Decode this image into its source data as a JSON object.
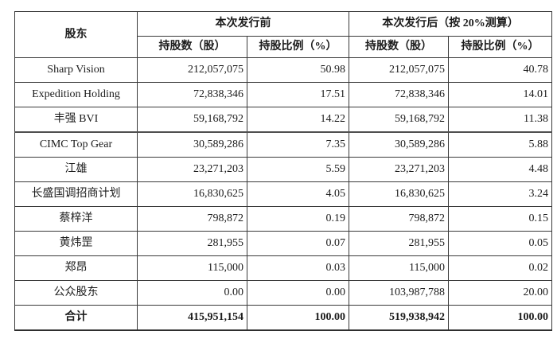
{
  "table": {
    "header": {
      "shareholder": "股东",
      "before_group": "本次发行前",
      "after_group": "本次发行后（按 20%测算）",
      "shares_label": "持股数（股）",
      "ratio_label": "持股比例（%）"
    },
    "rows": [
      {
        "name": "Sharp Vision",
        "before_shares": "212,057,075",
        "before_ratio": "50.98",
        "after_shares": "212,057,075",
        "after_ratio": "40.78",
        "total": false
      },
      {
        "name": "Expedition Holding",
        "before_shares": "72,838,346",
        "before_ratio": "17.51",
        "after_shares": "72,838,346",
        "after_ratio": "14.01",
        "total": false
      },
      {
        "name": "丰强 BVI",
        "before_shares": "59,168,792",
        "before_ratio": "14.22",
        "after_shares": "59,168,792",
        "after_ratio": "11.38",
        "total": false
      },
      {
        "name": "CIMC Top Gear",
        "before_shares": "30,589,286",
        "before_ratio": "7.35",
        "after_shares": "30,589,286",
        "after_ratio": "5.88",
        "total": false
      },
      {
        "name": "江雄",
        "before_shares": "23,271,203",
        "before_ratio": "5.59",
        "after_shares": "23,271,203",
        "after_ratio": "4.48",
        "total": false
      },
      {
        "name": "长盛国调招商计划",
        "before_shares": "16,830,625",
        "before_ratio": "4.05",
        "after_shares": "16,830,625",
        "after_ratio": "3.24",
        "total": false
      },
      {
        "name": "蔡梓洋",
        "before_shares": "798,872",
        "before_ratio": "0.19",
        "after_shares": "798,872",
        "after_ratio": "0.15",
        "total": false
      },
      {
        "name": "黄炜罡",
        "before_shares": "281,955",
        "before_ratio": "0.07",
        "after_shares": "281,955",
        "after_ratio": "0.05",
        "total": false
      },
      {
        "name": "郑昂",
        "before_shares": "115,000",
        "before_ratio": "0.03",
        "after_shares": "115,000",
        "after_ratio": "0.02",
        "total": false
      },
      {
        "name": "公众股东",
        "before_shares": "0.00",
        "before_ratio": "0.00",
        "after_shares": "103,987,788",
        "after_ratio": "20.00",
        "total": false
      },
      {
        "name": "合计",
        "before_shares": "415,951,154",
        "before_ratio": "100.00",
        "after_shares": "519,938,942",
        "after_ratio": "100.00",
        "total": true
      }
    ]
  }
}
